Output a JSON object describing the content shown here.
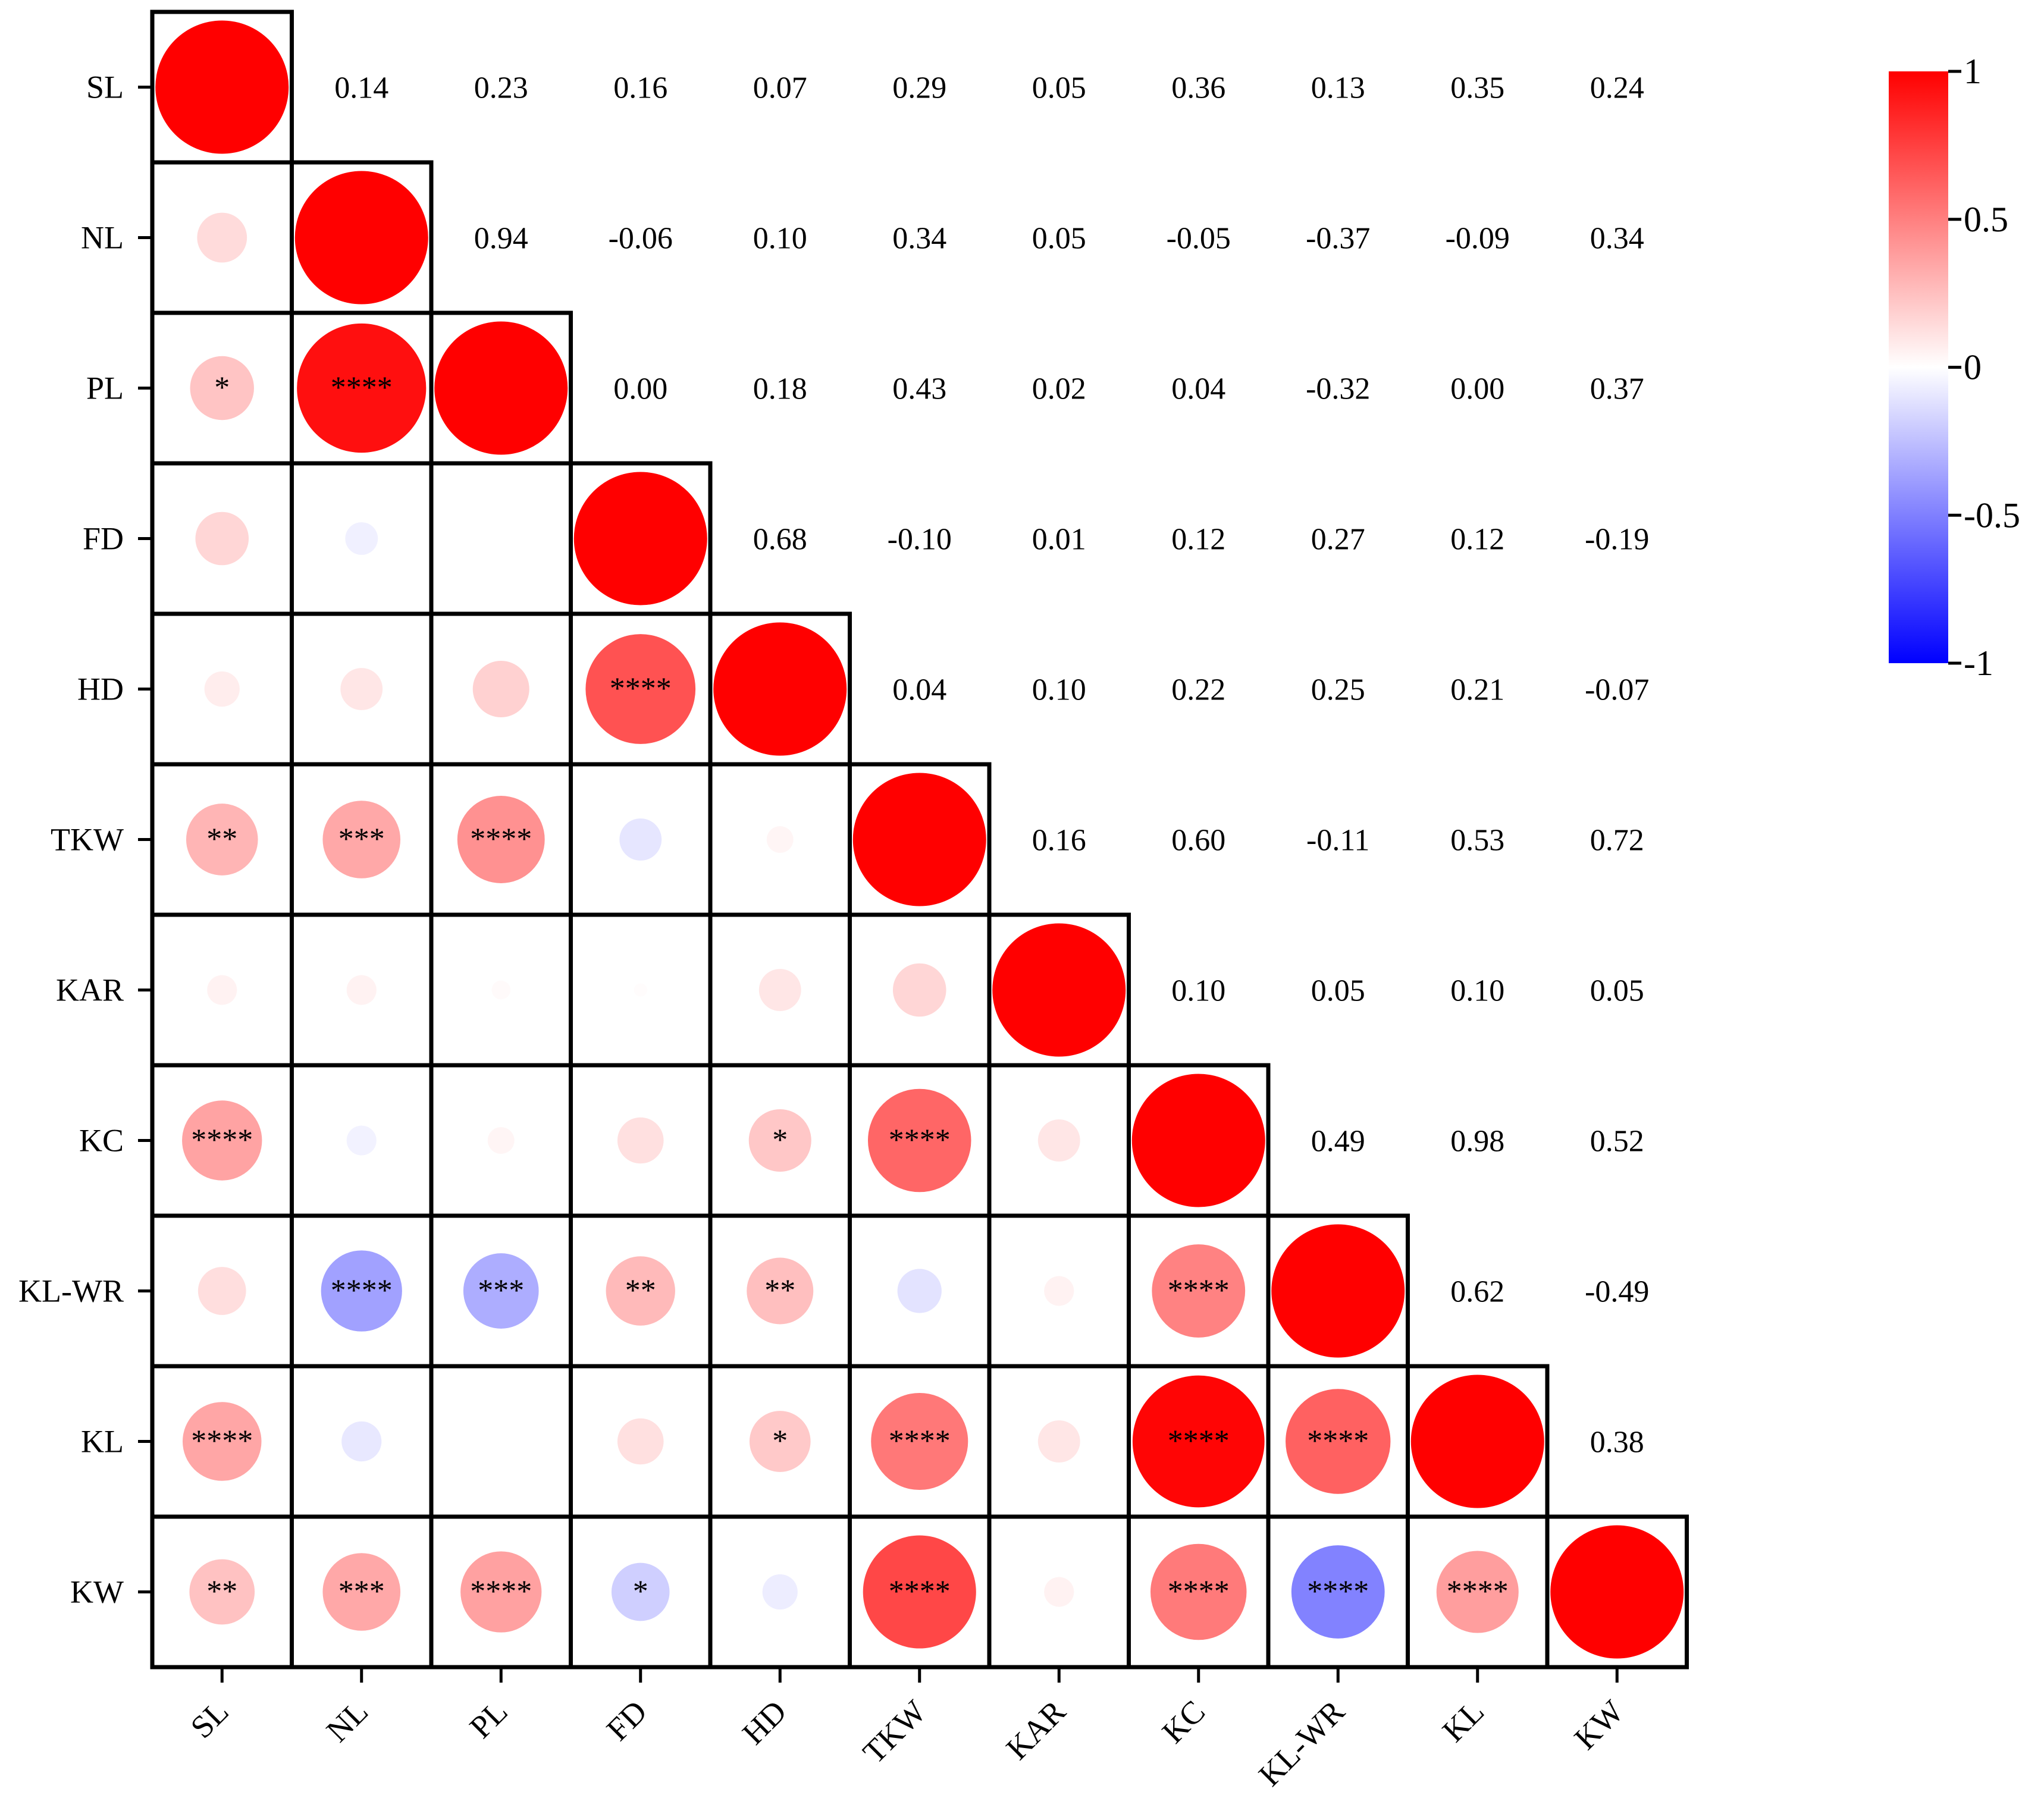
{
  "chart_data": {
    "type": "heatmap",
    "subtype": "correlation-matrix-lower-circles-upper-values",
    "variables": [
      "SL",
      "NL",
      "PL",
      "FD",
      "HD",
      "TKW",
      "KAR",
      "KC",
      "KL-WR",
      "KL",
      "KW"
    ],
    "matrix": [
      [
        1.0,
        0.14,
        0.23,
        0.16,
        0.07,
        0.29,
        0.05,
        0.36,
        0.13,
        0.35,
        0.24
      ],
      [
        0.14,
        1.0,
        0.94,
        -0.06,
        0.1,
        0.34,
        0.05,
        -0.05,
        -0.37,
        -0.09,
        0.34
      ],
      [
        0.23,
        0.94,
        1.0,
        0.0,
        0.18,
        0.43,
        0.02,
        0.04,
        -0.32,
        0.0,
        0.37
      ],
      [
        0.16,
        -0.06,
        0.0,
        1.0,
        0.68,
        -0.1,
        0.01,
        0.12,
        0.27,
        0.12,
        -0.19
      ],
      [
        0.07,
        0.1,
        0.18,
        0.68,
        1.0,
        0.04,
        0.1,
        0.22,
        0.25,
        0.21,
        -0.07
      ],
      [
        0.29,
        0.34,
        0.43,
        -0.1,
        0.04,
        1.0,
        0.16,
        0.6,
        -0.11,
        0.53,
        0.72
      ],
      [
        0.05,
        0.05,
        0.02,
        0.01,
        0.1,
        0.16,
        1.0,
        0.1,
        0.05,
        0.1,
        0.05
      ],
      [
        0.36,
        -0.05,
        0.04,
        0.12,
        0.22,
        0.6,
        0.1,
        1.0,
        0.49,
        0.98,
        0.52
      ],
      [
        0.13,
        -0.37,
        -0.32,
        0.27,
        0.25,
        -0.11,
        0.05,
        0.49,
        1.0,
        0.62,
        -0.49
      ],
      [
        0.35,
        -0.09,
        0.0,
        0.12,
        0.21,
        0.53,
        0.1,
        0.98,
        0.62,
        1.0,
        0.38
      ],
      [
        0.24,
        0.34,
        0.37,
        -0.19,
        -0.07,
        0.72,
        0.05,
        0.52,
        -0.49,
        0.38,
        1.0
      ]
    ],
    "upper_value_labels": [
      [
        "",
        "0.14",
        "0.23",
        "0.16",
        "0.07",
        "0.29",
        "0.05",
        "0.36",
        "0.13",
        "0.35",
        "0.24"
      ],
      [
        "",
        "",
        "0.94",
        "-0.06",
        "0.10",
        "0.34",
        "0.05",
        "-0.05",
        "-0.37",
        "-0.09",
        "0.34"
      ],
      [
        "",
        "",
        "",
        "0.00",
        "0.18",
        "0.43",
        "0.02",
        "0.04",
        "-0.32",
        "0.00",
        "0.37"
      ],
      [
        "",
        "",
        "",
        "",
        "0.68",
        "-0.10",
        "0.01",
        "0.12",
        "0.27",
        "0.12",
        "-0.19"
      ],
      [
        "",
        "",
        "",
        "",
        "",
        "0.04",
        "0.10",
        "0.22",
        "0.25",
        "0.21",
        "-0.07"
      ],
      [
        "",
        "",
        "",
        "",
        "",
        "",
        "0.16",
        "0.60",
        "-0.11",
        "0.53",
        "0.72"
      ],
      [
        "",
        "",
        "",
        "",
        "",
        "",
        "",
        "0.10",
        "0.05",
        "0.10",
        "0.05"
      ],
      [
        "",
        "",
        "",
        "",
        "",
        "",
        "",
        "",
        "0.49",
        "0.98",
        "0.52"
      ],
      [
        "",
        "",
        "",
        "",
        "",
        "",
        "",
        "",
        "",
        "0.62",
        "-0.49"
      ],
      [
        "",
        "",
        "",
        "",
        "",
        "",
        "",
        "",
        "",
        "",
        "0.38"
      ],
      [
        "",
        "",
        "",
        "",
        "",
        "",
        "",
        "",
        "",
        "",
        ""
      ]
    ],
    "significance": [
      [
        "",
        "",
        "",
        "",
        "",
        "",
        "",
        "",
        "",
        "",
        ""
      ],
      [
        "",
        "",
        "",
        "",
        "",
        "",
        "",
        "",
        "",
        "",
        ""
      ],
      [
        "*",
        "****",
        "",
        "",
        "",
        "",
        "",
        "",
        "",
        "",
        ""
      ],
      [
        "",
        "",
        "",
        "",
        "",
        "",
        "",
        "",
        "",
        "",
        ""
      ],
      [
        "",
        "",
        "",
        "****",
        "",
        "",
        "",
        "",
        "",
        "",
        ""
      ],
      [
        "**",
        "***",
        "****",
        "",
        "",
        "",
        "",
        "",
        "",
        "",
        ""
      ],
      [
        "",
        "",
        "",
        "",
        "",
        "",
        "",
        "",
        "",
        "",
        ""
      ],
      [
        "****",
        "",
        "",
        "",
        "*",
        "****",
        "",
        "",
        "",
        "",
        ""
      ],
      [
        "",
        "****",
        "***",
        "**",
        "**",
        "",
        "",
        "****",
        "",
        "",
        ""
      ],
      [
        "****",
        "",
        "",
        "",
        "*",
        "****",
        "",
        "****",
        "****",
        "",
        ""
      ],
      [
        "**",
        "***",
        "****",
        "*",
        "",
        "****",
        "",
        "****",
        "****",
        "****",
        ""
      ]
    ],
    "colorbar": {
      "range": [
        -1,
        1
      ],
      "ticks": [
        1,
        0.5,
        0,
        -0.5,
        -1
      ],
      "tick_labels": [
        "1",
        "0.5",
        "0",
        "-0.5",
        "-1"
      ],
      "colors": {
        "negative": "#0000ff",
        "zero": "#ffffff",
        "positive": "#ff0000"
      }
    },
    "grid": true,
    "legend": "right"
  }
}
